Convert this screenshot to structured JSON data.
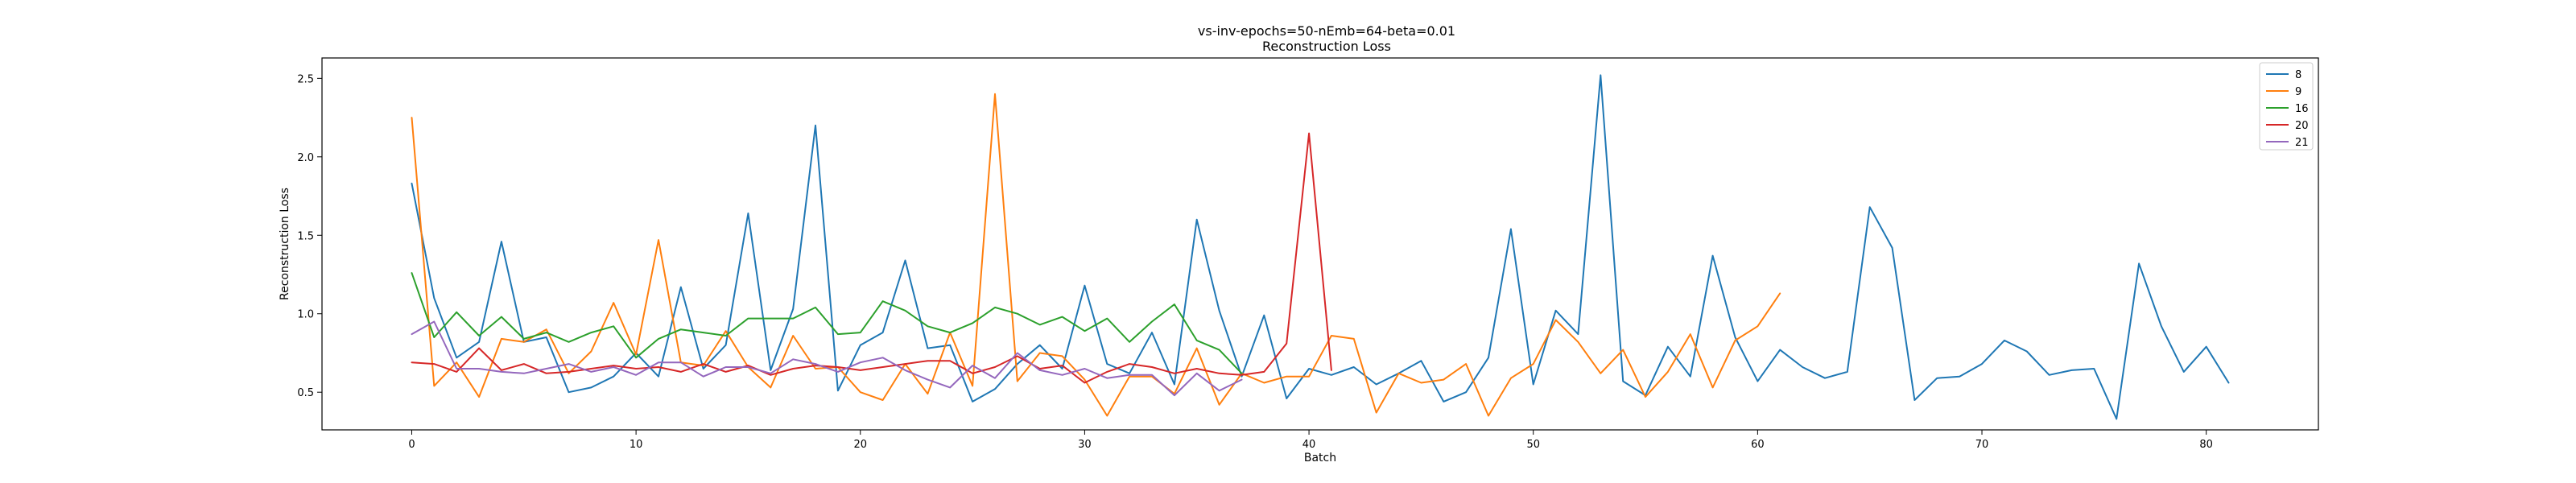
{
  "chart_data": {
    "type": "line",
    "title": "vs-inv-epochs=50-nEmb=64-beta=0.01",
    "subtitle": "Reconstruction Loss",
    "xlabel": "Batch",
    "ylabel": "Reconstruction Loss",
    "xlim": [
      -4,
      85
    ],
    "ylim": [
      0.26,
      2.63
    ],
    "xticks": [
      0,
      10,
      20,
      30,
      40,
      50,
      60,
      70,
      80
    ],
    "yticks": [
      0.5,
      1.0,
      1.5,
      2.0,
      2.5
    ],
    "ytick_labels": [
      "0.5",
      "1.0",
      "1.5",
      "2.0",
      "2.5"
    ],
    "grid": false,
    "legend_position": "top-right",
    "series": [
      {
        "name": "8",
        "color": "#1f77b4",
        "values": [
          1.83,
          1.1,
          0.72,
          0.82,
          1.46,
          0.82,
          0.85,
          0.5,
          0.53,
          0.6,
          0.75,
          0.6,
          1.17,
          0.65,
          0.8,
          1.64,
          0.64,
          1.03,
          2.2,
          0.51,
          0.8,
          0.88,
          1.34,
          0.78,
          0.8,
          0.44,
          0.52,
          0.68,
          0.8,
          0.65,
          1.18,
          0.68,
          0.62,
          0.88,
          0.55,
          1.6,
          1.02,
          0.6,
          0.99,
          0.46,
          0.65,
          0.61,
          0.66,
          0.55,
          0.62,
          0.7,
          0.44,
          0.5,
          0.72,
          1.54,
          0.55,
          1.02,
          0.87,
          2.52,
          0.57,
          0.48,
          0.79,
          0.6,
          1.37,
          0.85,
          0.57,
          0.77,
          0.66,
          0.59,
          0.63,
          1.68,
          1.42,
          0.45,
          0.59,
          0.6,
          0.68,
          0.83,
          0.76,
          0.61,
          0.64,
          0.65,
          0.33,
          1.32,
          0.92,
          0.63,
          0.79,
          0.56
        ]
      },
      {
        "name": "9",
        "color": "#ff7f0e",
        "values": [
          2.25,
          0.54,
          0.69,
          0.47,
          0.84,
          0.82,
          0.9,
          0.62,
          0.76,
          1.07,
          0.74,
          1.47,
          0.69,
          0.67,
          0.89,
          0.66,
          0.53,
          0.86,
          0.65,
          0.66,
          0.5,
          0.45,
          0.68,
          0.49,
          0.88,
          0.54,
          2.4,
          0.57,
          0.75,
          0.73,
          0.58,
          0.35,
          0.6,
          0.6,
          0.49,
          0.78,
          0.42,
          0.62,
          0.56,
          0.6,
          0.6,
          0.86,
          0.84,
          0.37,
          0.62,
          0.56,
          0.58,
          0.68,
          0.35,
          0.59,
          0.68,
          0.96,
          0.82,
          0.62,
          0.77,
          0.47,
          0.63,
          0.87,
          0.53,
          0.83,
          0.92,
          1.13
        ]
      },
      {
        "name": "16",
        "color": "#2ca02c",
        "values": [
          1.26,
          0.85,
          1.01,
          0.86,
          0.98,
          0.84,
          0.88,
          0.82,
          0.88,
          0.92,
          0.72,
          0.84,
          0.9,
          0.88,
          0.86,
          0.97,
          0.97,
          0.97,
          1.04,
          0.87,
          0.88,
          1.08,
          1.02,
          0.92,
          0.88,
          0.94,
          1.04,
          1.0,
          0.93,
          0.98,
          0.89,
          0.97,
          0.82,
          0.95,
          1.06,
          0.83,
          0.77,
          0.62
        ]
      },
      {
        "name": "20",
        "color": "#d62728",
        "values": [
          0.69,
          0.68,
          0.63,
          0.78,
          0.64,
          0.68,
          0.62,
          0.63,
          0.65,
          0.67,
          0.65,
          0.66,
          0.63,
          0.68,
          0.63,
          0.67,
          0.61,
          0.65,
          0.67,
          0.66,
          0.64,
          0.66,
          0.68,
          0.7,
          0.7,
          0.62,
          0.66,
          0.73,
          0.65,
          0.67,
          0.56,
          0.63,
          0.68,
          0.66,
          0.62,
          0.65,
          0.62,
          0.61,
          0.63,
          0.81,
          2.15,
          0.64
        ]
      },
      {
        "name": "21",
        "color": "#9467bd",
        "values": [
          0.87,
          0.95,
          0.65,
          0.65,
          0.63,
          0.62,
          0.65,
          0.68,
          0.63,
          0.66,
          0.61,
          0.69,
          0.69,
          0.6,
          0.66,
          0.66,
          0.62,
          0.71,
          0.68,
          0.63,
          0.69,
          0.72,
          0.64,
          0.58,
          0.53,
          0.67,
          0.59,
          0.75,
          0.64,
          0.61,
          0.65,
          0.59,
          0.61,
          0.61,
          0.48,
          0.62,
          0.51,
          0.58
        ]
      }
    ]
  }
}
